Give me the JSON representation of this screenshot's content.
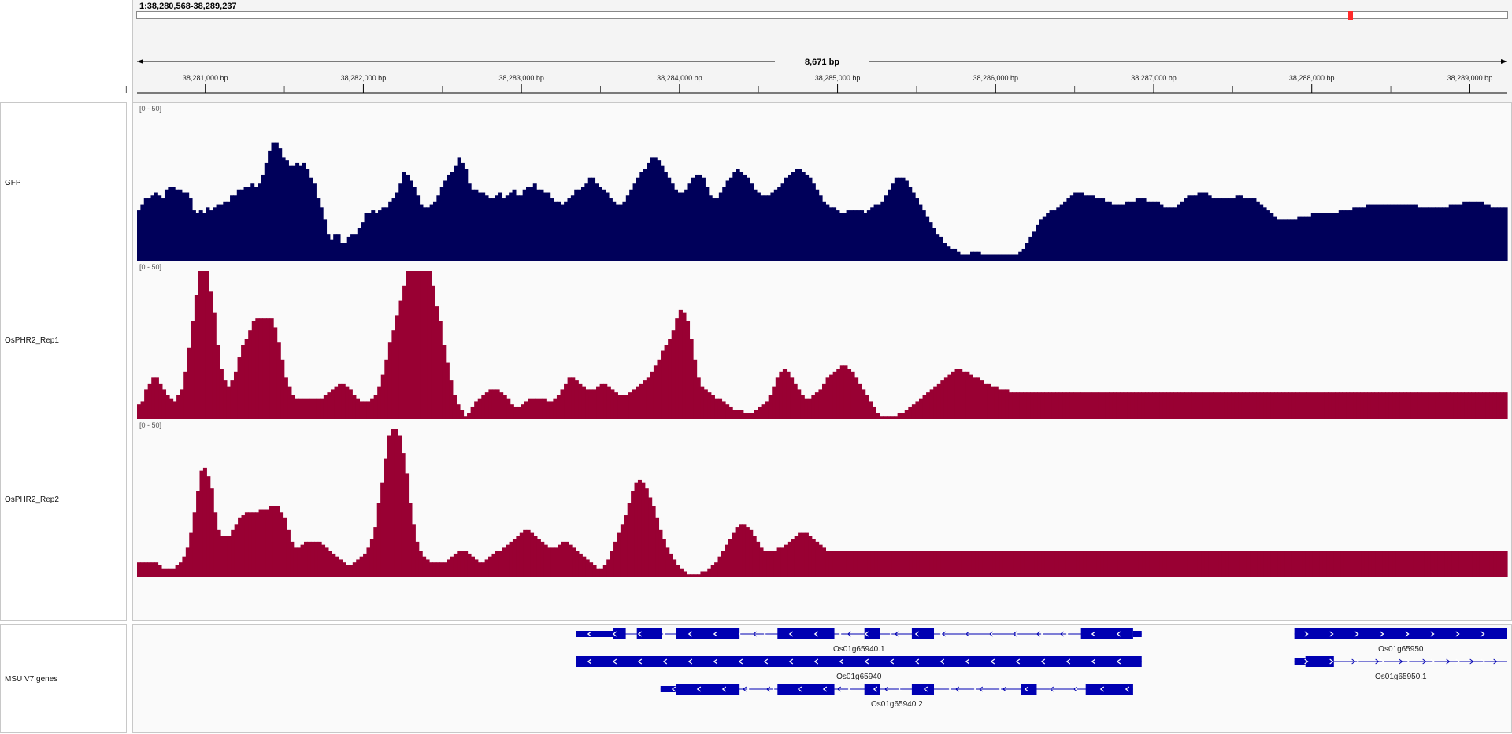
{
  "locus": "1:38,280,568-38,289,237",
  "ruler": {
    "span_label": "8,671 bp",
    "start": 38280568,
    "end": 38289237,
    "major_ticks": [
      {
        "pos": 38281000,
        "label": "38,281,000 bp"
      },
      {
        "pos": 38282000,
        "label": "38,282,000 bp"
      },
      {
        "pos": 38283000,
        "label": "38,283,000 bp"
      },
      {
        "pos": 38284000,
        "label": "38,284,000 bp"
      },
      {
        "pos": 38285000,
        "label": "38,285,000 bp"
      },
      {
        "pos": 38286000,
        "label": "38,286,000 bp"
      },
      {
        "pos": 38287000,
        "label": "38,287,000 bp"
      },
      {
        "pos": 38288000,
        "label": "38,288,000 bp"
      },
      {
        "pos": 38289000,
        "label": "38,289,000 bp"
      }
    ],
    "minor_ticks": [
      38280500,
      38281500,
      38282500,
      38283500,
      38284500,
      38285500,
      38286500,
      38287500,
      38288500
    ],
    "ideogram_marker_fraction": 0.884
  },
  "chart_data": [
    {
      "type": "bar",
      "name": "GFP",
      "range_label": "[0 - 50]",
      "ylim": [
        0,
        50
      ],
      "color": "#00005a",
      "values": [
        17,
        19,
        21,
        21,
        22,
        23,
        22,
        21,
        24,
        25,
        25,
        24,
        24,
        23,
        23,
        21,
        17,
        16,
        17,
        16,
        18,
        17,
        18,
        19,
        19,
        20,
        20,
        22,
        22,
        24,
        24,
        25,
        25,
        26,
        25,
        26,
        29,
        33,
        37,
        40,
        40,
        38,
        35,
        34,
        32,
        32,
        33,
        32,
        33,
        31,
        28,
        26,
        21,
        18,
        14,
        9,
        7,
        9,
        9,
        6,
        6,
        8,
        9,
        9,
        11,
        13,
        16,
        16,
        17,
        16,
        17,
        18,
        18,
        20,
        21,
        23,
        26,
        30,
        29,
        27,
        25,
        22,
        19,
        18,
        18,
        19,
        20,
        22,
        25,
        27,
        29,
        30,
        32,
        35,
        33,
        31,
        26,
        24,
        24,
        23,
        23,
        22,
        21,
        21,
        22,
        23,
        21,
        22,
        23,
        24,
        22,
        22,
        24,
        25,
        25,
        26,
        24,
        24,
        23,
        23,
        21,
        20,
        20,
        19,
        20,
        21,
        22,
        24,
        24,
        25,
        26,
        28,
        28,
        26,
        25,
        24,
        23,
        21,
        20,
        19,
        19,
        20,
        22,
        24,
        26,
        28,
        30,
        31,
        33,
        35,
        35,
        34,
        32,
        30,
        28,
        26,
        24,
        23,
        23,
        24,
        26,
        28,
        29,
        29,
        28,
        25,
        22,
        21,
        21,
        23,
        25,
        27,
        28,
        30,
        31,
        30,
        29,
        28,
        26,
        24,
        23,
        22,
        22,
        22,
        23,
        24,
        25,
        26,
        28,
        29,
        30,
        31,
        31,
        30,
        29,
        28,
        26,
        24,
        22,
        20,
        19,
        18,
        18,
        17,
        16,
        16,
        17,
        17,
        17,
        17,
        17,
        16,
        17,
        18,
        19,
        19,
        20,
        22,
        24,
        26,
        28,
        28,
        28,
        27,
        25,
        23,
        21,
        19,
        17,
        15,
        13,
        11,
        9,
        8,
        6,
        5,
        4,
        4,
        3,
        2,
        2,
        2,
        3,
        3,
        3,
        2,
        2,
        2,
        2,
        2,
        2,
        2,
        2,
        2,
        2,
        2,
        3,
        4,
        6,
        8,
        10,
        12,
        14,
        15,
        16,
        17,
        17,
        18,
        19,
        20,
        21,
        22,
        23,
        23,
        23,
        22,
        22,
        22,
        21,
        21,
        21,
        20,
        20,
        19,
        19,
        19,
        19,
        20,
        20,
        20,
        21,
        21,
        21,
        20,
        20,
        20,
        20,
        19,
        18,
        18,
        18,
        18,
        19,
        20,
        21,
        22,
        22,
        22,
        23,
        23,
        23,
        22,
        21,
        21,
        21,
        21,
        21,
        21,
        21,
        22,
        22,
        21,
        21,
        21,
        21,
        20,
        19,
        18,
        17,
        16,
        15,
        14,
        14,
        14,
        14,
        14,
        14,
        15,
        15,
        15,
        15,
        16,
        16,
        16,
        16,
        16,
        16,
        16,
        16,
        17,
        17,
        17,
        17,
        18,
        18,
        18,
        18,
        19,
        19,
        19,
        19,
        19,
        19,
        19,
        19,
        19,
        19,
        19,
        19,
        19,
        19,
        19,
        18,
        18,
        18,
        18,
        18,
        18,
        18,
        18,
        18,
        19,
        19,
        19,
        19,
        20,
        20,
        20,
        20,
        20,
        20,
        19,
        19,
        18,
        18,
        18,
        18,
        18
      ]
    },
    {
      "type": "bar",
      "name": "OsPHR2_Rep1",
      "range_label": "[0 - 50]",
      "ylim": [
        0,
        50
      ],
      "color": "#990033",
      "values": [
        5,
        6,
        10,
        12,
        14,
        14,
        12,
        10,
        8,
        7,
        6,
        8,
        10,
        16,
        24,
        33,
        42,
        50,
        50,
        50,
        43,
        36,
        25,
        17,
        13,
        11,
        13,
        16,
        21,
        25,
        27,
        30,
        33,
        34,
        34,
        34,
        34,
        34,
        31,
        26,
        20,
        14,
        11,
        8,
        7,
        7,
        7,
        7,
        7,
        7,
        7,
        7,
        8,
        9,
        10,
        11,
        12,
        12,
        11,
        10,
        8,
        7,
        6,
        6,
        6,
        7,
        8,
        11,
        15,
        20,
        26,
        30,
        35,
        40,
        45,
        50,
        50,
        50,
        50,
        50,
        50,
        50,
        45,
        38,
        33,
        25,
        19,
        13,
        8,
        5,
        3,
        1,
        2,
        4,
        6,
        7,
        8,
        9,
        10,
        10,
        10,
        9,
        8,
        7,
        5,
        4,
        4,
        5,
        6,
        7,
        7,
        7,
        7,
        7,
        6,
        6,
        7,
        8,
        10,
        12,
        14,
        14,
        13,
        12,
        11,
        10,
        10,
        10,
        11,
        12,
        12,
        11,
        10,
        9,
        8,
        8,
        8,
        9,
        10,
        11,
        12,
        13,
        14,
        16,
        18,
        20,
        23,
        25,
        27,
        30,
        34,
        37,
        36,
        33,
        27,
        20,
        14,
        11,
        10,
        9,
        8,
        7,
        7,
        6,
        5,
        4,
        3,
        3,
        3,
        2,
        2,
        2,
        3,
        4,
        5,
        6,
        8,
        11,
        14,
        16,
        17,
        16,
        14,
        12,
        10,
        8,
        7,
        7,
        8,
        9,
        10,
        12,
        14,
        15,
        16,
        17,
        18,
        18,
        17,
        16,
        14,
        12,
        10,
        8,
        6,
        4,
        2,
        1,
        1,
        1,
        1,
        1,
        2,
        2,
        3,
        4,
        5,
        6,
        7,
        8,
        9,
        10,
        11,
        12,
        13,
        14,
        15,
        16,
        17,
        17,
        16,
        16,
        15,
        14,
        14,
        13,
        12,
        12,
        11,
        11,
        10,
        10,
        10,
        9,
        9,
        9,
        9,
        9,
        9,
        9,
        9,
        9,
        9,
        9,
        9,
        9,
        9,
        9,
        9,
        9,
        9,
        9,
        9,
        9,
        9,
        9,
        9,
        9,
        9,
        9,
        9,
        9,
        9,
        9,
        9,
        9,
        9,
        9,
        9,
        9,
        9,
        9,
        9,
        9,
        9,
        9,
        9,
        9,
        9,
        9,
        9,
        9,
        9,
        9,
        9,
        9,
        9,
        9,
        9,
        9,
        9,
        9,
        9,
        9,
        9,
        9,
        9,
        9,
        9,
        9,
        9,
        9,
        9,
        9,
        9,
        9,
        9,
        9,
        9,
        9,
        9,
        9,
        9,
        9,
        9,
        9,
        9,
        9,
        9,
        9,
        9,
        9,
        9,
        9,
        9,
        9,
        9,
        9,
        9,
        9,
        9,
        9,
        9,
        9,
        9,
        9,
        9,
        9,
        9,
        9,
        9,
        9,
        9,
        9,
        9,
        9,
        9,
        9,
        9,
        9,
        9,
        9,
        9,
        9,
        9,
        9,
        9,
        9,
        9,
        9,
        9,
        9,
        9,
        9,
        9,
        9,
        9,
        9,
        9,
        9,
        9,
        9
      ]
    },
    {
      "type": "bar",
      "name": "OsPHR2_Rep2",
      "range_label": "[0 - 50]",
      "ylim": [
        0,
        50
      ],
      "color": "#990033",
      "values": [
        5,
        5,
        5,
        5,
        5,
        5,
        4,
        3,
        3,
        3,
        3,
        4,
        5,
        7,
        10,
        15,
        22,
        29,
        36,
        37,
        34,
        30,
        22,
        16,
        14,
        14,
        14,
        16,
        18,
        20,
        21,
        22,
        22,
        22,
        22,
        23,
        23,
        23,
        24,
        24,
        24,
        22,
        20,
        16,
        12,
        10,
        10,
        11,
        12,
        12,
        12,
        12,
        12,
        11,
        10,
        9,
        8,
        7,
        6,
        5,
        4,
        4,
        5,
        6,
        7,
        8,
        10,
        13,
        17,
        25,
        32,
        40,
        48,
        50,
        50,
        48,
        42,
        35,
        25,
        18,
        12,
        9,
        7,
        6,
        5,
        5,
        5,
        5,
        5,
        6,
        7,
        8,
        9,
        9,
        9,
        8,
        7,
        6,
        5,
        5,
        6,
        7,
        8,
        9,
        9,
        10,
        11,
        12,
        13,
        14,
        15,
        16,
        16,
        15,
        14,
        13,
        12,
        11,
        10,
        10,
        10,
        11,
        12,
        12,
        11,
        10,
        9,
        8,
        7,
        6,
        5,
        4,
        3,
        3,
        4,
        6,
        9,
        12,
        15,
        18,
        21,
        25,
        29,
        32,
        33,
        32,
        30,
        27,
        24,
        20,
        16,
        13,
        10,
        8,
        6,
        4,
        3,
        2,
        1,
        1,
        1,
        1,
        2,
        2,
        3,
        4,
        5,
        7,
        9,
        11,
        13,
        15,
        17,
        18,
        18,
        17,
        16,
        14,
        12,
        10,
        9,
        9,
        9,
        9,
        10,
        10,
        11,
        12,
        13,
        14,
        15,
        15,
        15,
        14,
        13,
        12,
        11,
        10,
        9,
        9,
        9,
        9,
        9,
        9,
        9,
        9,
        9,
        9,
        9,
        9,
        9,
        9,
        9,
        9,
        9,
        9,
        9,
        9,
        9,
        9,
        9,
        9,
        9,
        9,
        9,
        9,
        9,
        9,
        9,
        9,
        9,
        9,
        9,
        9,
        9,
        9,
        9,
        9,
        9,
        9,
        9,
        9,
        9,
        9,
        9,
        9,
        9,
        9,
        9,
        9,
        9,
        9,
        9,
        9,
        9,
        9,
        9,
        9,
        9,
        9,
        9,
        9,
        9,
        9,
        9,
        9,
        9,
        9,
        9,
        9,
        9,
        9,
        9,
        9,
        9,
        9,
        9,
        9,
        9,
        9,
        9,
        9,
        9,
        9,
        9,
        9,
        9,
        9,
        9,
        9,
        9,
        9,
        9,
        9,
        9,
        9,
        9,
        9,
        9,
        9,
        9,
        9,
        9,
        9,
        9,
        9,
        9,
        9,
        9,
        9,
        9,
        9,
        9,
        9,
        9,
        9,
        9,
        9,
        9,
        9,
        9,
        9,
        9,
        9,
        9,
        9,
        9,
        9,
        9,
        9,
        9,
        9,
        9,
        9,
        9,
        9,
        9,
        9,
        9,
        9,
        9,
        9,
        9,
        9,
        9,
        9,
        9,
        9,
        9,
        9,
        9,
        9,
        9,
        9,
        9,
        9,
        9,
        9,
        9,
        9,
        9,
        9,
        9,
        9,
        9,
        9,
        9,
        9,
        9,
        9,
        9,
        9,
        9,
        9,
        9,
        9,
        9,
        9,
        9,
        9,
        9,
        9,
        9,
        9,
        9,
        9,
        9,
        9,
        9,
        9,
        9,
        9,
        9,
        9
      ]
    }
  ],
  "feature_track": {
    "name": "MSU V7 genes",
    "color": "#0000b2",
    "genes": [
      {
        "label": "Os01g65940.1",
        "strand": "-",
        "row": 0,
        "start": 38283347,
        "end": 38286924,
        "thin": [
          [
            38283347,
            38283580
          ],
          [
            38286870,
            38286924
          ]
        ],
        "exons": [
          [
            38283580,
            38283660
          ],
          [
            38283730,
            38283890
          ],
          [
            38283980,
            38284380
          ],
          [
            38284620,
            38284980
          ],
          [
            38285170,
            38285270
          ],
          [
            38285470,
            38285610
          ],
          [
            38286540,
            38286870
          ]
        ]
      },
      {
        "label": "Os01g65940",
        "strand": "-",
        "row": 1,
        "start": 38283347,
        "end": 38286924,
        "thin": [],
        "exons": [
          [
            38283347,
            38286924
          ]
        ]
      },
      {
        "label": "Os01g65940.2",
        "strand": "-",
        "row": 2,
        "start": 38283880,
        "end": 38286870,
        "thin": [
          [
            38283880,
            38283980
          ]
        ],
        "exons": [
          [
            38283980,
            38284380
          ],
          [
            38284620,
            38284980
          ],
          [
            38285170,
            38285270
          ],
          [
            38285470,
            38285610
          ],
          [
            38286160,
            38286260
          ],
          [
            38286570,
            38286870
          ]
        ]
      },
      {
        "label": "Os01g65950",
        "strand": "+",
        "row": 0,
        "start": 38287890,
        "end": 38289237,
        "thin": [],
        "exons": [
          [
            38287890,
            38289237
          ]
        ]
      },
      {
        "label": "Os01g65950.1",
        "strand": "+",
        "row": 1,
        "start": 38287890,
        "end": 38289237,
        "thin": [
          [
            38287890,
            38287960
          ]
        ],
        "exons": [
          [
            38287960,
            38288140
          ]
        ]
      }
    ]
  }
}
